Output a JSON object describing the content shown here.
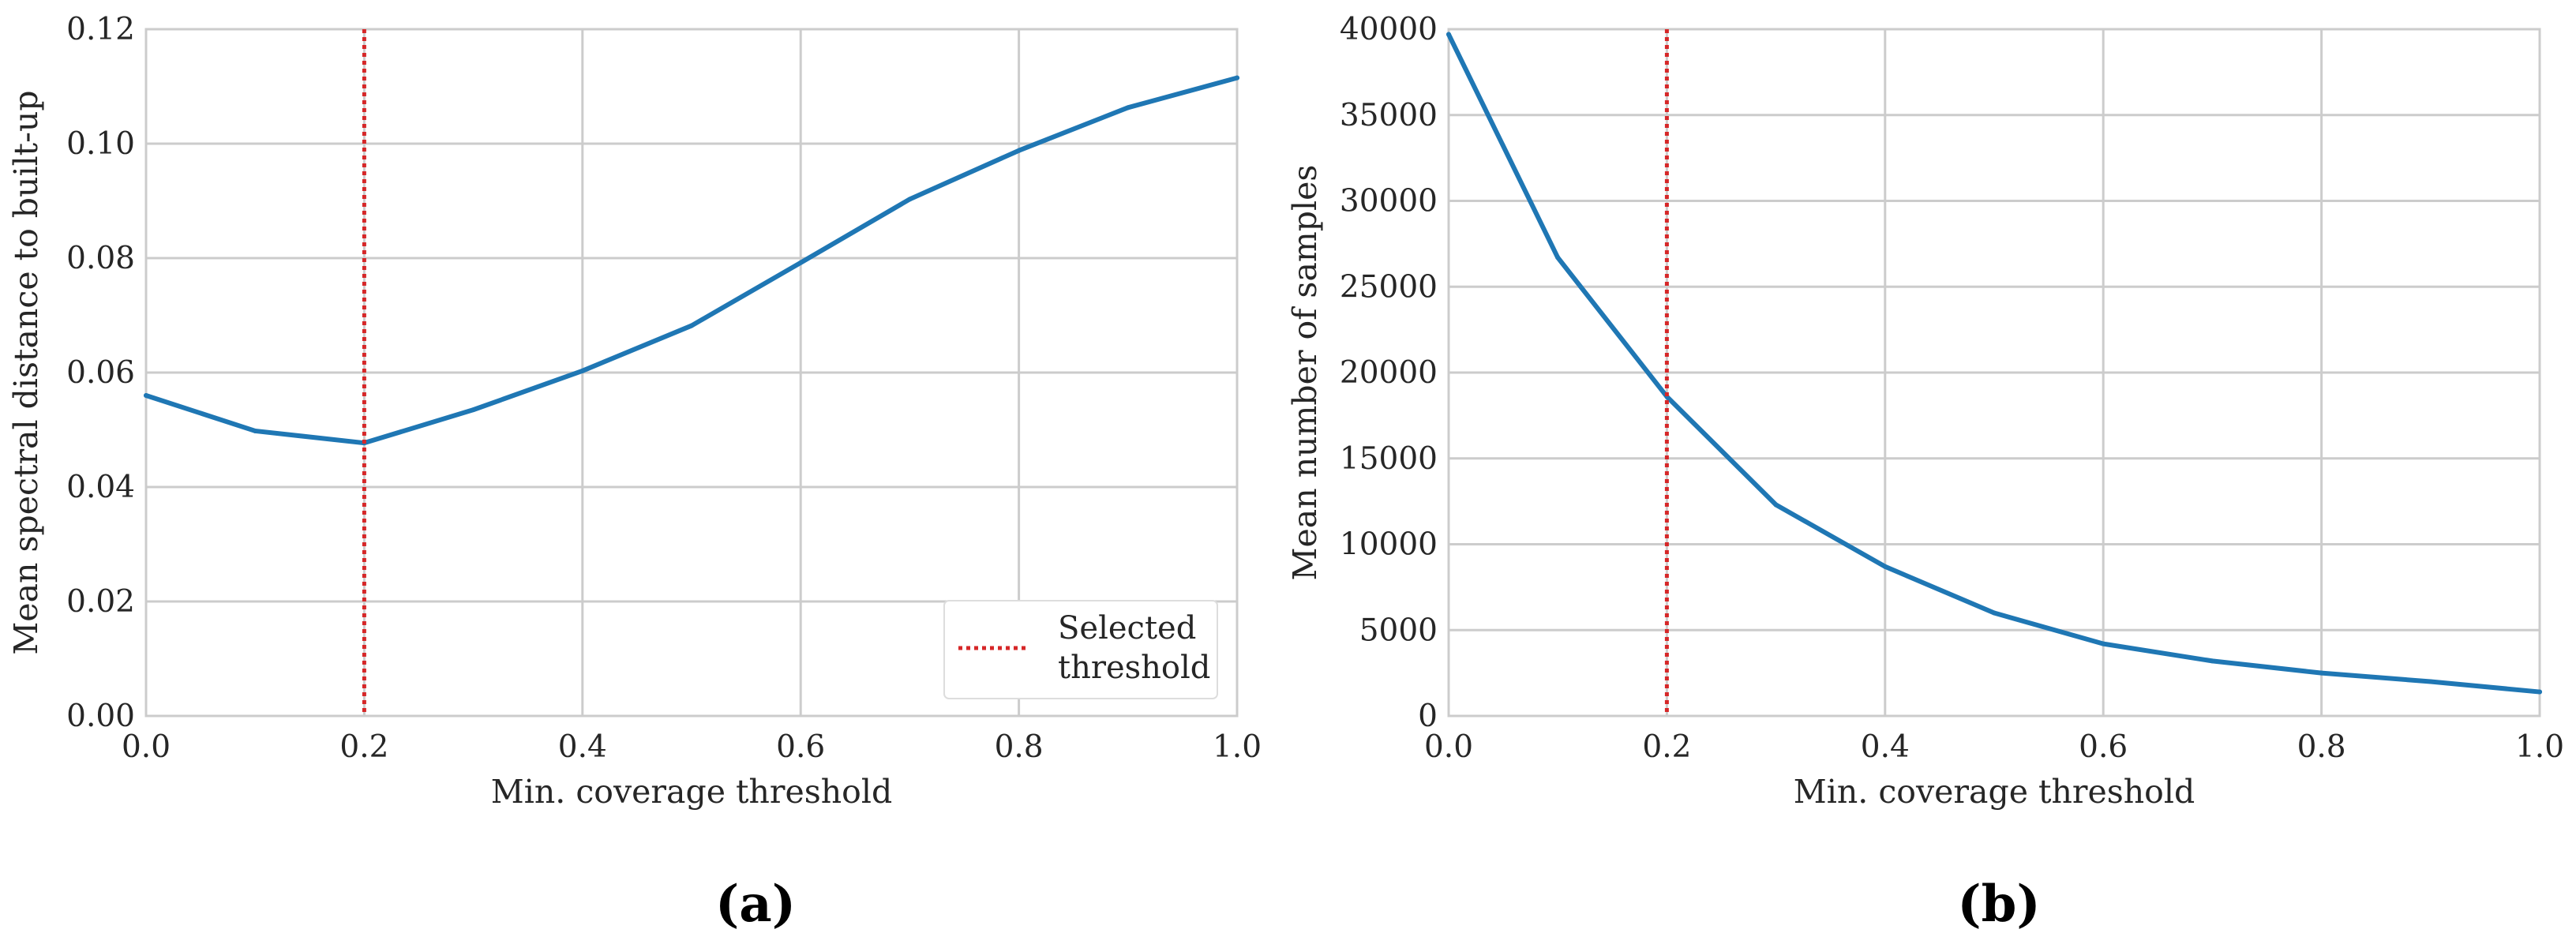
{
  "colors": {
    "series": "#1f77b4",
    "threshold": "#d62728"
  },
  "chart_data": [
    {
      "type": "line",
      "panel_label": "(a)",
      "xlabel": "Min. coverage threshold",
      "ylabel": "Mean spectral distance to built-up",
      "xlim": [
        0.0,
        1.0
      ],
      "ylim": [
        0.0,
        0.12
      ],
      "xticks": [
        0.0,
        0.2,
        0.4,
        0.6,
        0.8,
        1.0
      ],
      "xtick_labels": [
        "0.0",
        "0.2",
        "0.4",
        "0.6",
        "0.8",
        "1.0"
      ],
      "yticks": [
        0.0,
        0.02,
        0.04,
        0.06,
        0.08,
        0.1,
        0.12
      ],
      "ytick_labels": [
        "0.00",
        "0.02",
        "0.04",
        "0.06",
        "0.08",
        "0.10",
        "0.12"
      ],
      "grid": true,
      "series": [
        {
          "name": "mean spectral distance",
          "x": [
            0.0,
            0.1,
            0.2,
            0.3,
            0.4,
            0.5,
            0.6,
            0.7,
            0.8,
            0.9,
            1.0
          ],
          "y": [
            0.056,
            0.0498,
            0.0477,
            0.0535,
            0.0603,
            0.0682,
            0.0792,
            0.0903,
            0.0988,
            0.1063,
            0.1115
          ]
        }
      ],
      "vline": {
        "x": 0.2,
        "label": "Selected threshold"
      },
      "legend": {
        "placement": "bottom-right",
        "lines": [
          "Selected",
          "threshold"
        ]
      }
    },
    {
      "type": "line",
      "panel_label": "(b)",
      "xlabel": "Min. coverage threshold",
      "ylabel": "Mean number of samples",
      "xlim": [
        0.0,
        1.0
      ],
      "ylim": [
        0,
        40000
      ],
      "xticks": [
        0.0,
        0.2,
        0.4,
        0.6,
        0.8,
        1.0
      ],
      "xtick_labels": [
        "0.0",
        "0.2",
        "0.4",
        "0.6",
        "0.8",
        "1.0"
      ],
      "yticks": [
        0,
        5000,
        10000,
        15000,
        20000,
        25000,
        30000,
        35000,
        40000
      ],
      "ytick_labels": [
        "0",
        "5000",
        "10000",
        "15000",
        "20000",
        "25000",
        "30000",
        "35000",
        "40000"
      ],
      "grid": true,
      "series": [
        {
          "name": "mean number of samples",
          "x": [
            0.0,
            0.1,
            0.2,
            0.3,
            0.4,
            0.5,
            0.6,
            0.7,
            0.8,
            0.9,
            1.0
          ],
          "y": [
            39700,
            26700,
            18600,
            12300,
            8700,
            6000,
            4200,
            3200,
            2500,
            2000,
            1400
          ]
        }
      ],
      "vline": {
        "x": 0.2,
        "label": "Selected threshold"
      }
    }
  ]
}
